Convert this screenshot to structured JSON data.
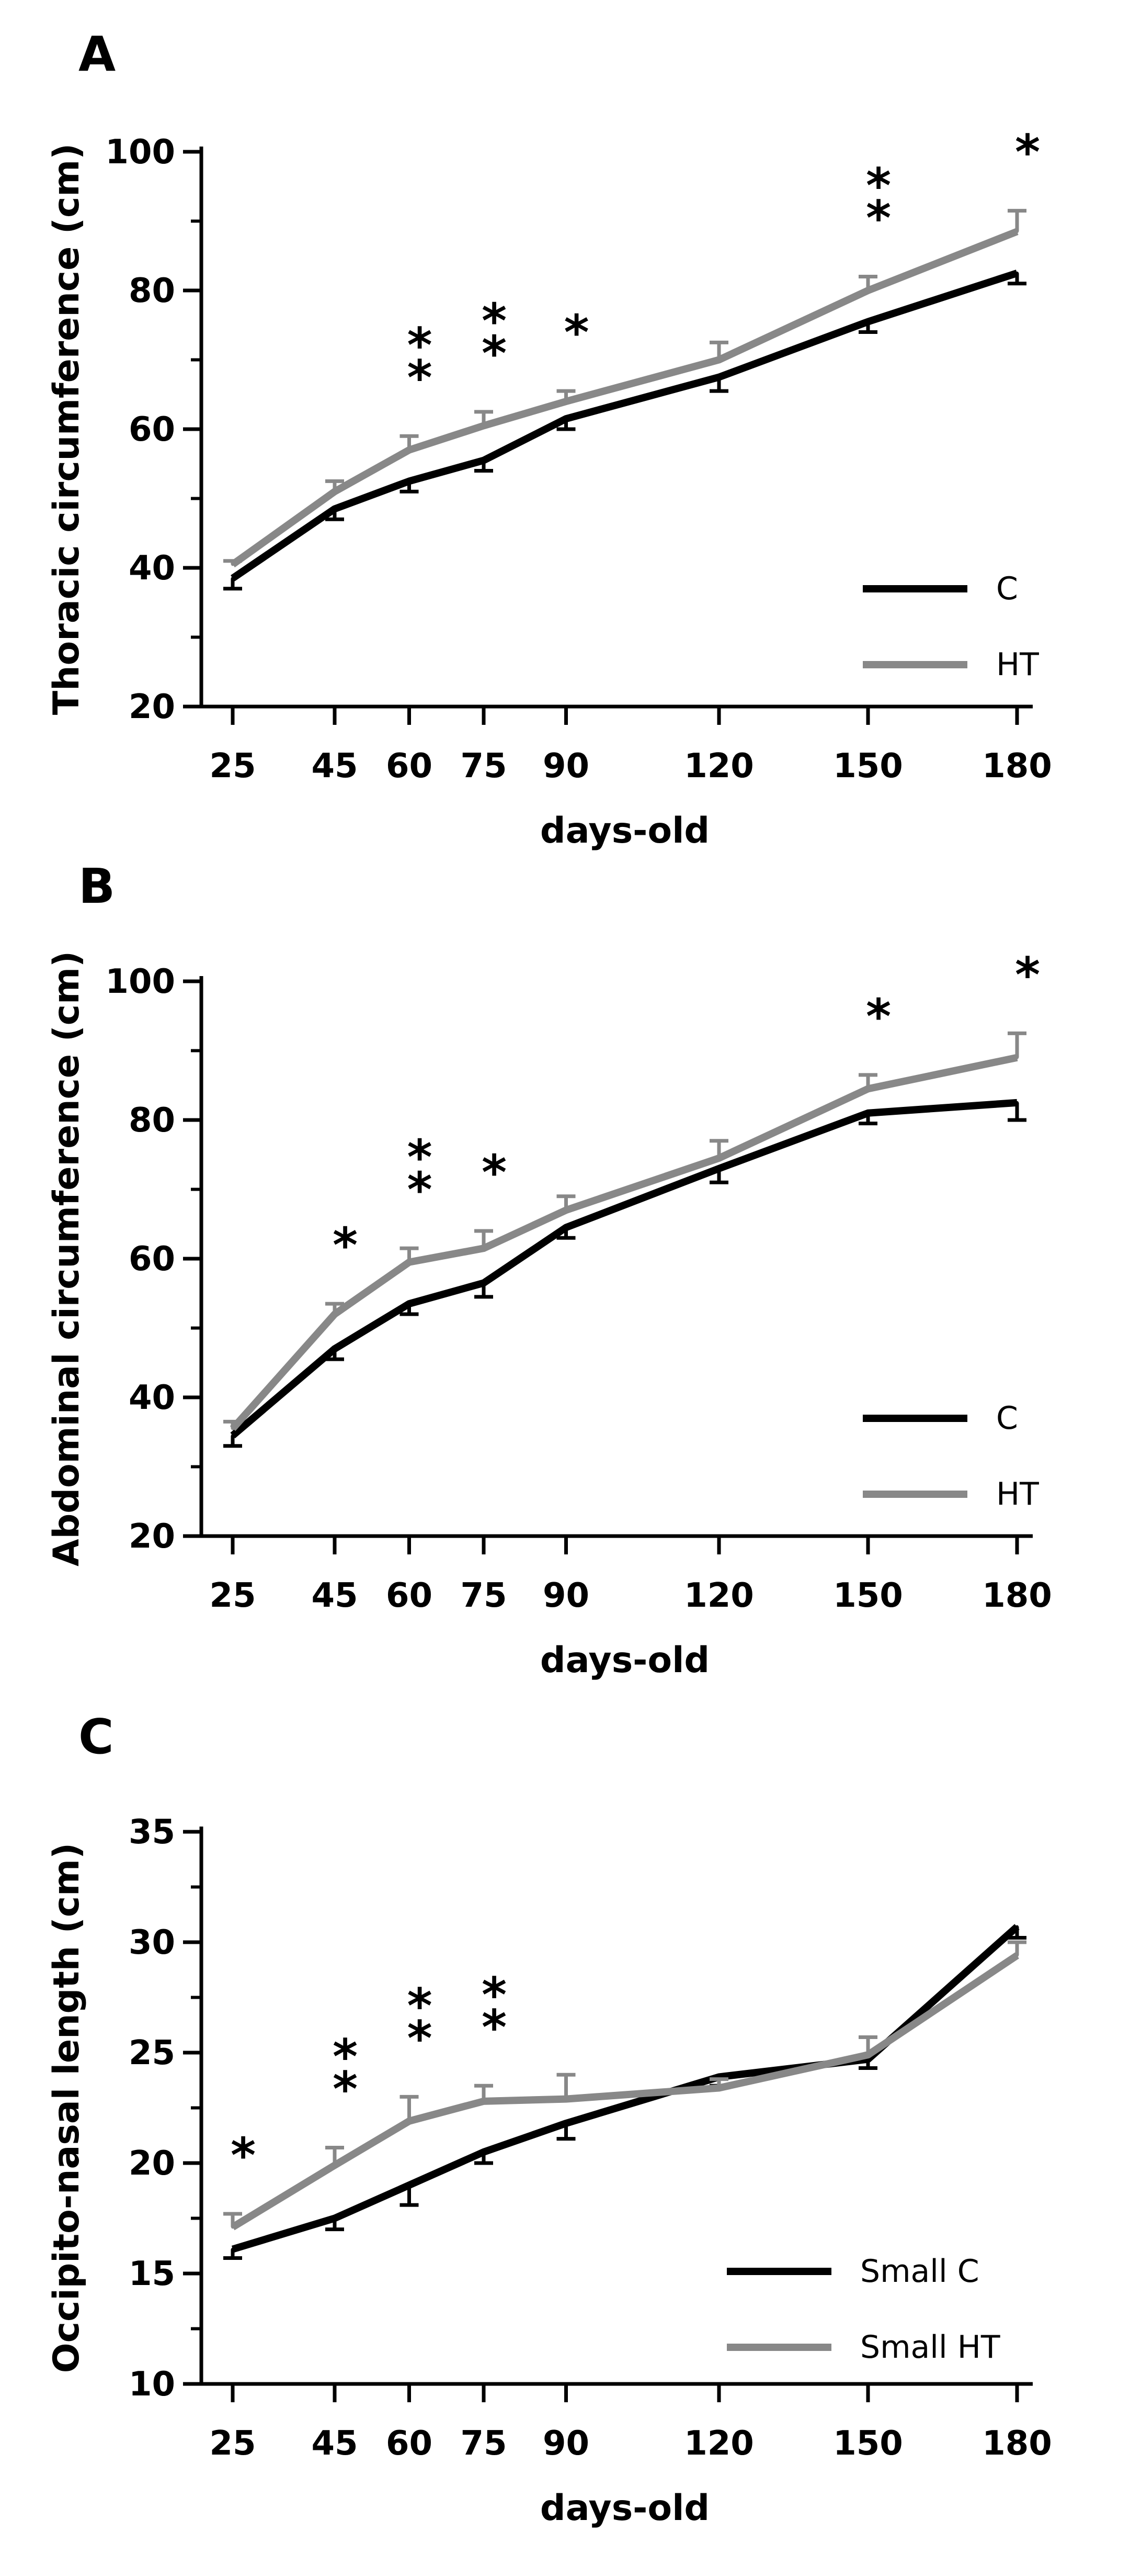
{
  "chart_data": [
    {
      "panel": "A",
      "type": "line",
      "xlabel": "days-old",
      "ylabel": "Thoracic circumference (cm)",
      "ylim": [
        20,
        100
      ],
      "yticks": [
        20,
        40,
        60,
        80,
        100
      ],
      "x": [
        25,
        45,
        60,
        75,
        90,
        120,
        150,
        180
      ],
      "xtick_labels": [
        "25",
        "45",
        "60",
        "75",
        "90",
        "120",
        "150",
        "180"
      ],
      "legend_position": "bottom-right",
      "series": [
        {
          "name": "C",
          "color": "#000000",
          "values": [
            38.5,
            48.5,
            52.5,
            55.5,
            61.5,
            67.5,
            75.5,
            82.5
          ],
          "errors": [
            1.5,
            1.5,
            1.5,
            1.5,
            1.5,
            2,
            1.5,
            1.5
          ]
        },
        {
          "name": "HT",
          "color": "#888888",
          "values": [
            40.5,
            51,
            57,
            60.5,
            64,
            70,
            80,
            88.5
          ],
          "errors": [
            0.5,
            1.5,
            2,
            2,
            1.5,
            2.5,
            2,
            3
          ]
        }
      ],
      "significance": [
        {
          "x": 60,
          "label": "**"
        },
        {
          "x": 75,
          "label": "**"
        },
        {
          "x": 90,
          "label": "*"
        },
        {
          "x": 150,
          "label": "**"
        },
        {
          "x": 180,
          "label": "*"
        }
      ]
    },
    {
      "panel": "B",
      "type": "line",
      "xlabel": "days-old",
      "ylabel": "Abdominal circumference (cm)",
      "ylim": [
        20,
        100
      ],
      "yticks": [
        20,
        40,
        60,
        80,
        100
      ],
      "x": [
        25,
        45,
        60,
        75,
        90,
        120,
        150,
        180
      ],
      "xtick_labels": [
        "25",
        "45",
        "60",
        "75",
        "90",
        "120",
        "150",
        "180"
      ],
      "legend_position": "bottom-right",
      "series": [
        {
          "name": "C",
          "color": "#000000",
          "values": [
            34.5,
            47,
            53.5,
            56.5,
            64.5,
            73,
            81,
            82.5
          ],
          "errors": [
            1.5,
            1.5,
            1.5,
            2,
            1.5,
            2,
            1.5,
            2.5
          ]
        },
        {
          "name": "HT",
          "color": "#888888",
          "values": [
            35.5,
            52,
            59.5,
            61.5,
            67,
            74.5,
            84.5,
            89
          ],
          "errors": [
            1,
            1.5,
            2,
            2.5,
            2,
            2.5,
            2,
            3.5
          ]
        }
      ],
      "significance": [
        {
          "x": 45,
          "label": "*"
        },
        {
          "x": 60,
          "label": "**"
        },
        {
          "x": 75,
          "label": "*"
        },
        {
          "x": 150,
          "label": "*"
        },
        {
          "x": 180,
          "label": "*"
        }
      ]
    },
    {
      "panel": "C",
      "type": "line",
      "xlabel": "days-old",
      "ylabel": "Occipito-nasal length (cm)",
      "ylim": [
        10,
        35
      ],
      "yticks": [
        10,
        15,
        20,
        25,
        30,
        35
      ],
      "x": [
        25,
        45,
        60,
        75,
        90,
        120,
        150,
        180
      ],
      "xtick_labels": [
        "25",
        "45",
        "60",
        "75",
        "90",
        "120",
        "150",
        "180"
      ],
      "legend_position": "bottom-right",
      "series": [
        {
          "name": "Small C",
          "color": "#000000",
          "values": [
            16.1,
            17.5,
            19,
            20.5,
            21.8,
            23.9,
            24.7,
            30.7
          ],
          "errors": [
            0.4,
            0.5,
            0.9,
            0.5,
            0.7,
            0.4,
            0.4,
            0.5
          ]
        },
        {
          "name": "Small HT",
          "color": "#888888",
          "values": [
            17.1,
            19.9,
            21.9,
            22.8,
            22.9,
            23.4,
            24.9,
            29.4
          ],
          "errors": [
            0.6,
            0.8,
            1.1,
            0.7,
            1.1,
            0.4,
            0.8,
            0.6
          ]
        }
      ],
      "significance": [
        {
          "x": 25,
          "label": "*"
        },
        {
          "x": 45,
          "label": "**"
        },
        {
          "x": 60,
          "label": "**"
        },
        {
          "x": 75,
          "label": "**"
        }
      ]
    }
  ]
}
